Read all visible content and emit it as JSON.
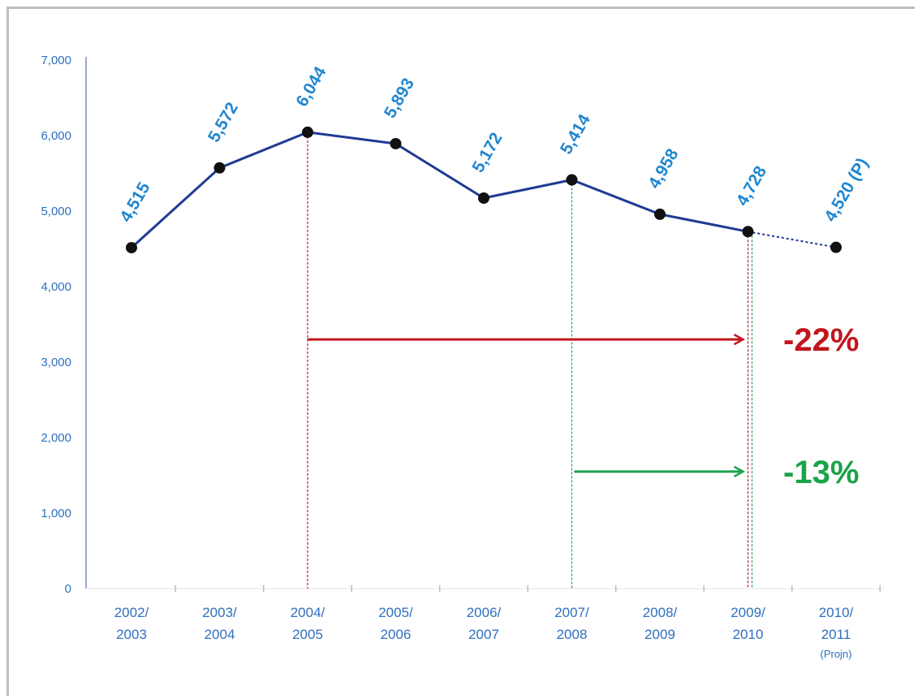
{
  "chart_data": {
    "type": "line",
    "title": "",
    "xlabel": "",
    "ylabel": "",
    "ylim": [
      0,
      7000
    ],
    "yticks": [
      "0",
      "1,000",
      "2,000",
      "3,000",
      "4,000",
      "5,000",
      "6,000",
      "7,000"
    ],
    "grid": false,
    "categories": [
      [
        "2002/",
        "2003"
      ],
      [
        "2003/",
        "2004"
      ],
      [
        "2004/",
        "2005"
      ],
      [
        "2005/",
        "2006"
      ],
      [
        "2006/",
        "2007"
      ],
      [
        "2007/",
        "2008"
      ],
      [
        "2008/",
        "2009"
      ],
      [
        "2009/",
        "2010"
      ],
      [
        "2010/",
        "2011",
        "(Projn)"
      ]
    ],
    "series": [
      {
        "values": [
          4515,
          5572,
          6044,
          5893,
          5172,
          5414,
          4958,
          4728,
          4520
        ],
        "data_labels": [
          "4,515",
          "5,572",
          "6,044",
          "5,893",
          "5,172",
          "5,414",
          "4,958",
          "4,728",
          "4,520 (P)"
        ],
        "projected_from_index": 7,
        "color": "#1f3a93"
      }
    ],
    "annotations": [
      {
        "label": "-22%",
        "from_index": 2,
        "to_index": 7,
        "arrow_value": 3300,
        "color": "#c0161d"
      },
      {
        "label": "-13%",
        "from_index": 5,
        "to_index": 7,
        "arrow_value": 1550,
        "color": "#1aa34a"
      }
    ]
  }
}
